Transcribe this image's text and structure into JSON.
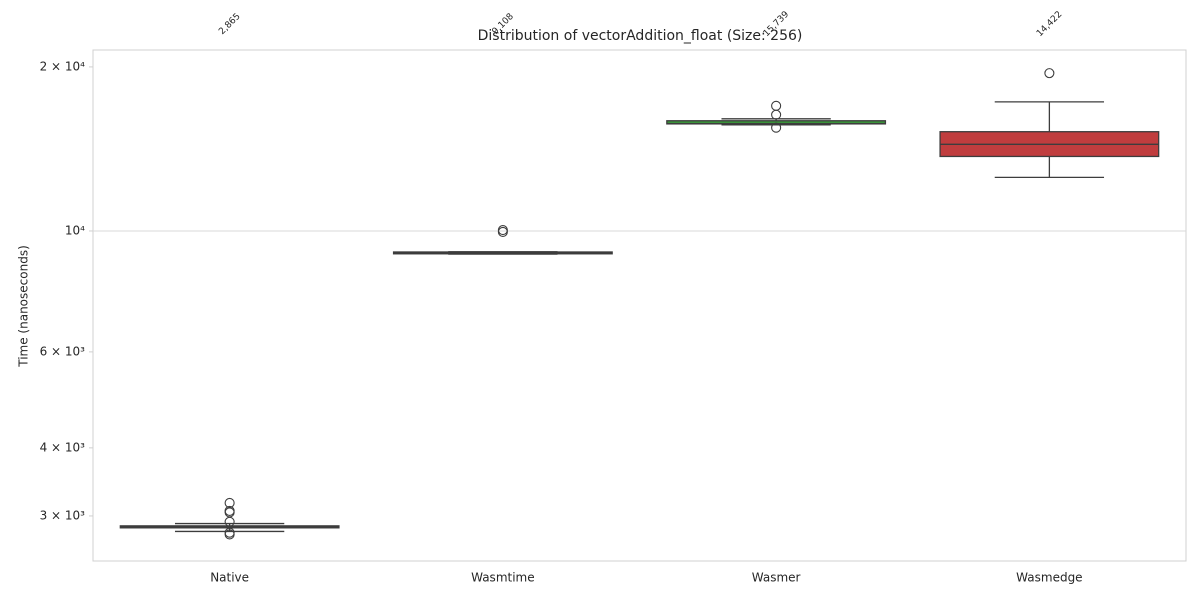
{
  "chart_data": {
    "type": "box",
    "title": "Distribution of vectorAddition_float (Size: 256)",
    "ylabel": "Time (nanoseconds)",
    "yscale": "log",
    "ylim": [
      2480,
      21480
    ],
    "yticks": [
      {
        "value": 3000,
        "label": "3 × 10³"
      },
      {
        "value": 4000,
        "label": "4 × 10³"
      },
      {
        "value": 6000,
        "label": "6 × 10³"
      },
      {
        "value": 10000,
        "label": "10⁴"
      },
      {
        "value": 20000,
        "label": "2 × 10⁴"
      }
    ],
    "ygrid": [
      10000
    ],
    "categories": [
      "Native",
      "Wasmtime",
      "Wasmer",
      "Wasmedge"
    ],
    "colors": [
      "#3274a1",
      "#e1812c",
      "#3a923a",
      "#c03d3e"
    ],
    "boxes": [
      {
        "whislo": 2810,
        "q1": 2853,
        "med": 2865,
        "q3": 2877,
        "whishi": 2905,
        "fliers": [
          3169,
          3064,
          3045,
          2927,
          2795,
          2775
        ],
        "label": "2,865"
      },
      {
        "whislo": 9070,
        "q1": 9080,
        "med": 9108,
        "q3": 9150,
        "whishi": 9160,
        "fliers": [
          10040,
          9960
        ],
        "label": "9,108"
      },
      {
        "whislo": 15660,
        "q1": 15720,
        "med": 15739,
        "q3": 15930,
        "whishi": 16060,
        "fliers": [
          16965,
          16340,
          15470
        ],
        "label": "15,739"
      },
      {
        "whislo": 12540,
        "q1": 13700,
        "med": 14422,
        "q3": 15210,
        "whishi": 17250,
        "fliers": [
          19480
        ],
        "label": "14,422"
      }
    ]
  }
}
